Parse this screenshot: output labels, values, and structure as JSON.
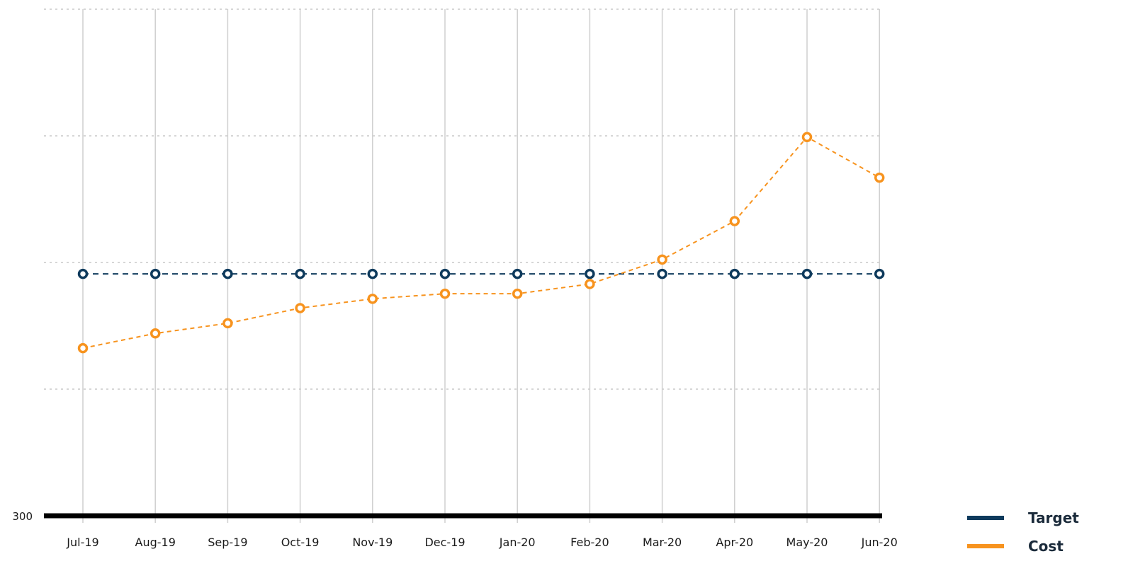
{
  "chart_data": {
    "type": "line",
    "categories": [
      "Jul-19",
      "Aug-19",
      "Sep-19",
      "Oct-19",
      "Nov-19",
      "Dec-19",
      "Jan-20",
      "Feb-20",
      "Mar-20",
      "Apr-20",
      "May-20",
      "Jun-20"
    ],
    "series": [
      {
        "name": "Target",
        "color": "#0e3a5c",
        "values": [
          357.3,
          357.3,
          357.3,
          357.3,
          357.3,
          357.3,
          357.3,
          357.3,
          357.3,
          357.3,
          357.3,
          357.3
        ]
      },
      {
        "name": "Cost",
        "color": "#f7931e",
        "values": [
          339.7,
          343.2,
          345.6,
          349.2,
          351.4,
          352.6,
          352.6,
          354.9,
          360.7,
          369.8,
          389.7,
          380.1
        ]
      }
    ],
    "ylim": [
      300,
      420
    ],
    "y_tick_labels": [
      {
        "value": 300,
        "label": "300"
      }
    ],
    "gridlines_y": [
      330,
      360,
      390,
      420
    ],
    "grid": true,
    "legend_position": "bottom-right",
    "title": "",
    "xlabel": "",
    "ylabel": ""
  }
}
